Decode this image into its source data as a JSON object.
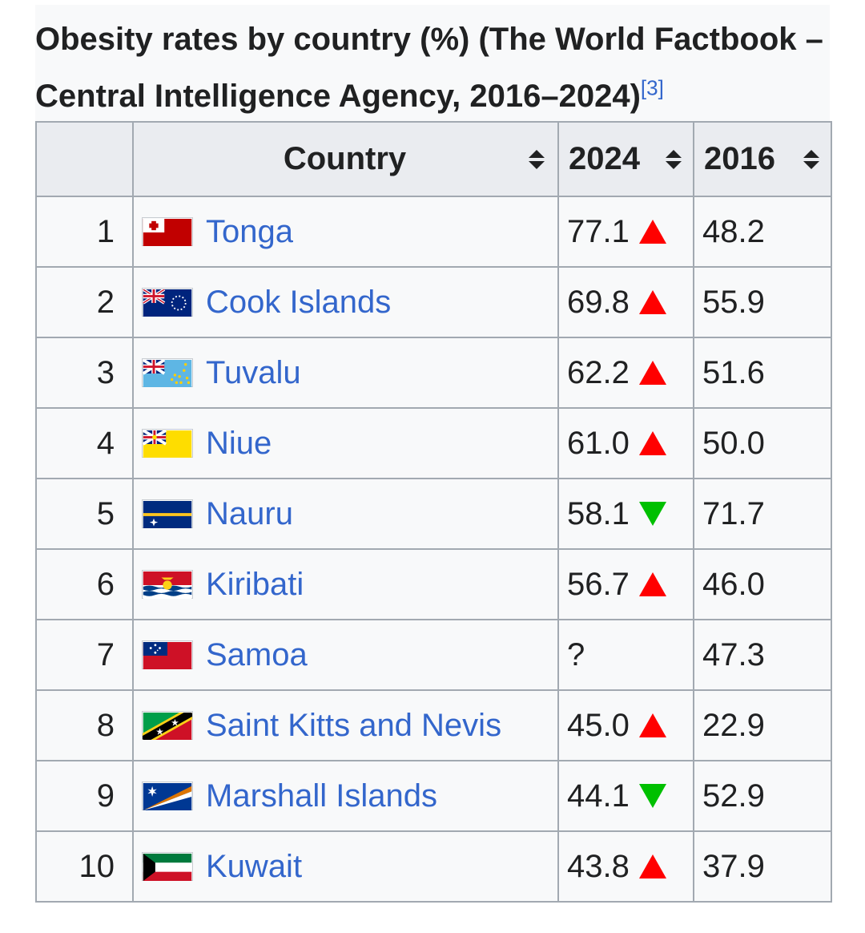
{
  "caption": {
    "title": "Obesity rates by country (%) (The World Factbook – Central Intelligence Agency, 2016–2024)",
    "ref": "[3]"
  },
  "headers": {
    "rank": "",
    "country": "Country",
    "y2024": "2024",
    "y2016": "2016"
  },
  "rows": [
    {
      "rank": "1",
      "country": "Tonga",
      "flag": "tonga-flag-icon",
      "v2024": "77.1",
      "trend": "up",
      "v2016": "48.2"
    },
    {
      "rank": "2",
      "country": "Cook Islands",
      "flag": "cook-islands-flag-icon",
      "v2024": "69.8",
      "trend": "up",
      "v2016": "55.9"
    },
    {
      "rank": "3",
      "country": "Tuvalu",
      "flag": "tuvalu-flag-icon",
      "v2024": "62.2",
      "trend": "up",
      "v2016": "51.6"
    },
    {
      "rank": "4",
      "country": "Niue",
      "flag": "niue-flag-icon",
      "v2024": "61.0",
      "trend": "up",
      "v2016": "50.0"
    },
    {
      "rank": "5",
      "country": "Nauru",
      "flag": "nauru-flag-icon",
      "v2024": "58.1",
      "trend": "down",
      "v2016": "71.7"
    },
    {
      "rank": "6",
      "country": "Kiribati",
      "flag": "kiribati-flag-icon",
      "v2024": "56.7",
      "trend": "up",
      "v2016": "46.0"
    },
    {
      "rank": "7",
      "country": "Samoa",
      "flag": "samoa-flag-icon",
      "v2024": "?",
      "trend": "none",
      "v2016": "47.3"
    },
    {
      "rank": "8",
      "country": "Saint Kitts and Nevis",
      "flag": "saint-kitts-and-nevis-flag-icon",
      "v2024": "45.0",
      "trend": "up",
      "v2016": "22.9"
    },
    {
      "rank": "9",
      "country": "Marshall Islands",
      "flag": "marshall-islands-flag-icon",
      "v2024": "44.1",
      "trend": "down",
      "v2016": "52.9"
    },
    {
      "rank": "10",
      "country": "Kuwait",
      "flag": "kuwait-flag-icon",
      "v2024": "43.8",
      "trend": "up",
      "v2016": "37.9"
    }
  ],
  "colors": {
    "link": "#3366cc",
    "increase": "#ff0000",
    "decrease": "#00c000",
    "header_bg": "#eaecf0",
    "border": "#a2a9b1"
  }
}
